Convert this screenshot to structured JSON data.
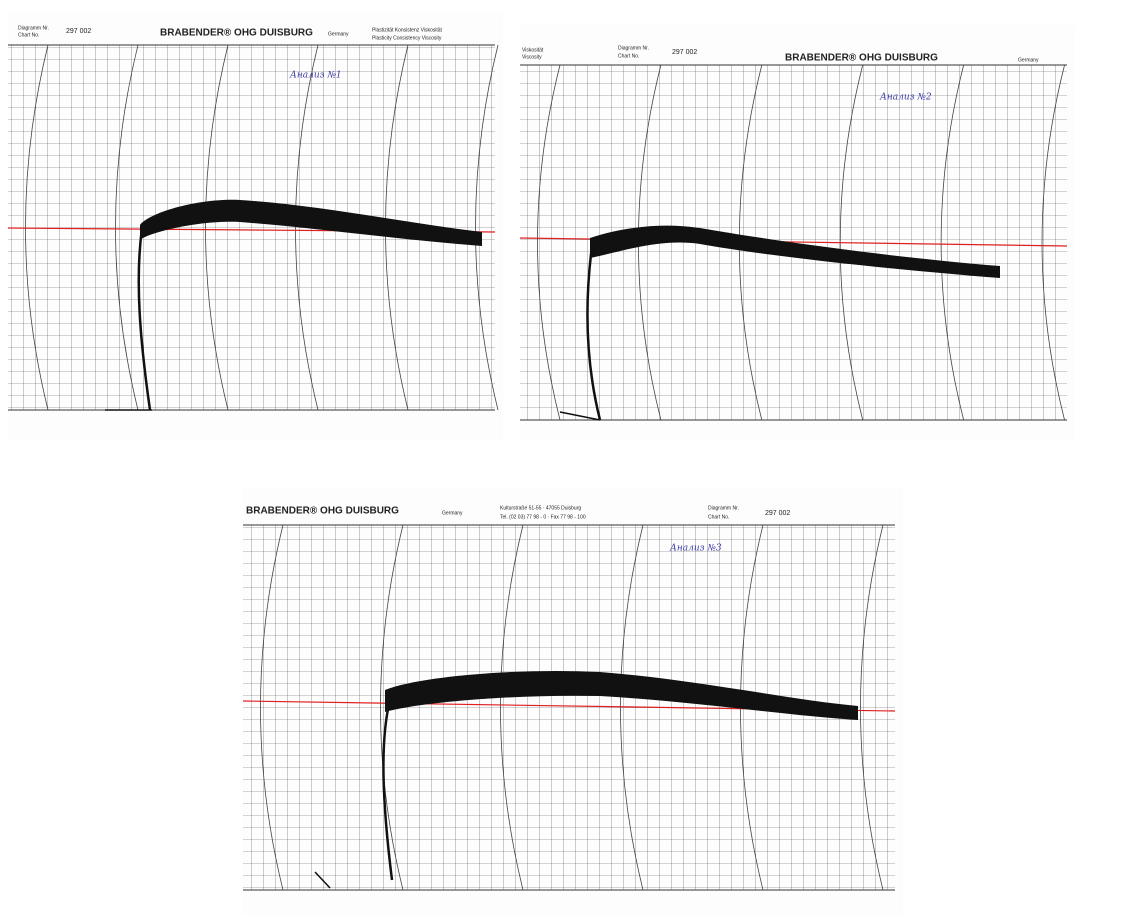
{
  "charts": [
    {
      "header": {
        "diagram_label": "Diagramm Nr.",
        "chart_label": "Chart No.",
        "number": "297 002",
        "brand": "BRABENDER® OHG DUISBURG",
        "country": "Germany",
        "col_de": "Plastizität Konsistenz Viskosität",
        "col_en": "Plasticity Consistency Viscosity"
      },
      "note": "Анализ №1"
    },
    {
      "header": {
        "diagram_label": "Diagramm Nr.",
        "chart_label": "Chart No.",
        "number": "297 002",
        "brand": "BRABENDER® OHG DUISBURG",
        "country": "Germany",
        "col_de": "Viskosität",
        "col_en": "Viscosity"
      },
      "note": "Анализ №2"
    },
    {
      "header": {
        "diagram_label": "Diagramm Nr.",
        "chart_label": "Chart No.",
        "number": "297 002",
        "brand": "BRABENDER® OHG DUISBURG",
        "country": "Germany",
        "address": "Kulturstraße 51-55 · 47055 Duisburg",
        "phone": "Tel. (02 03) 77 98 - 0 · Fax 77 98 - 100"
      },
      "note": "Анализ №3"
    }
  ]
}
